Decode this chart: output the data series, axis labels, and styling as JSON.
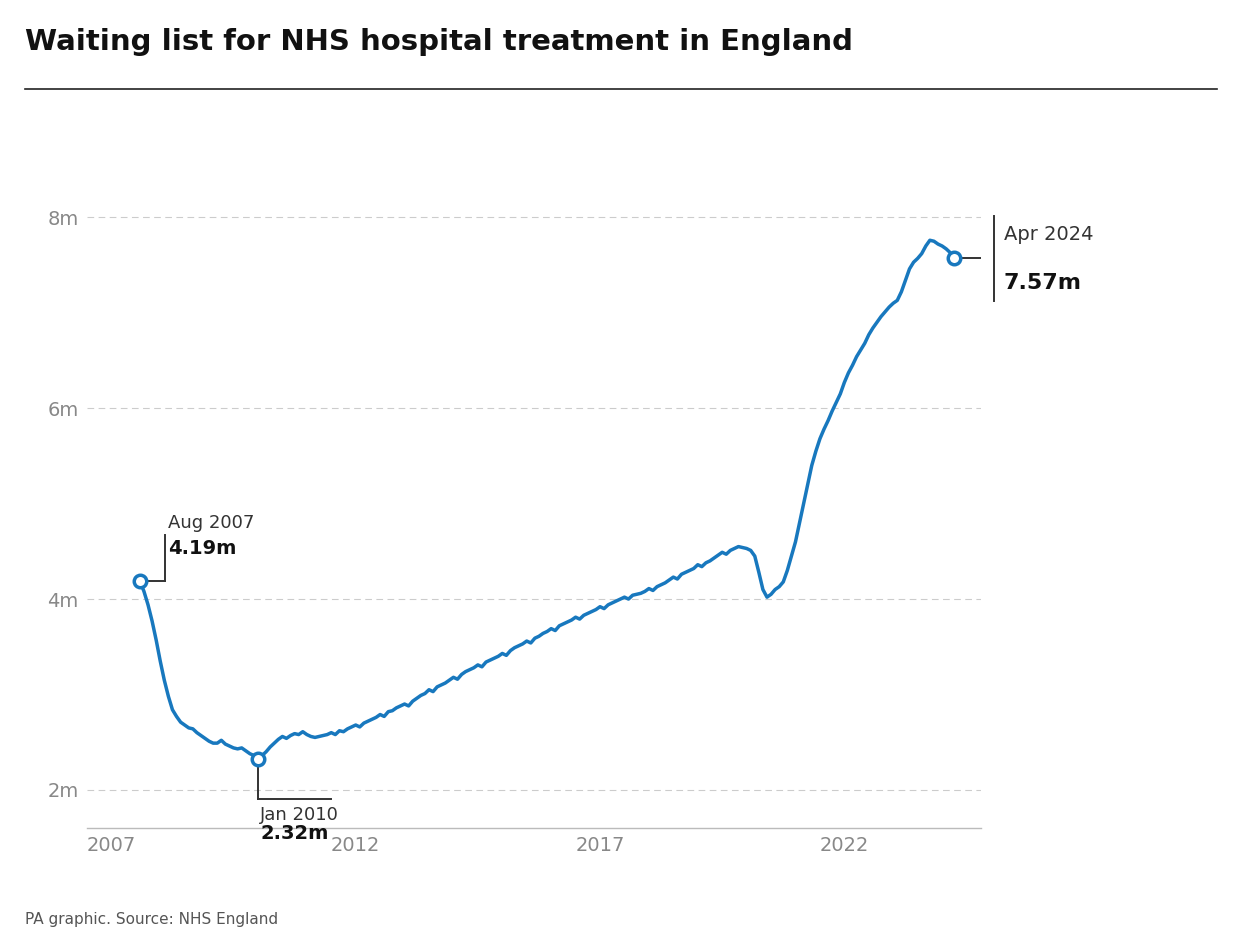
{
  "title": "Waiting list for NHS hospital treatment in England",
  "line_color": "#1878be",
  "background_color": "#ffffff",
  "grid_color": "#aaaaaa",
  "source_text": "PA graphic. Source: NHS England",
  "ytick_labels": [
    "2m",
    "4m",
    "6m",
    "8m"
  ],
  "ytick_values": [
    2000000,
    4000000,
    6000000,
    8000000
  ],
  "xtick_labels": [
    "2007",
    "2012",
    "2017",
    "2022"
  ],
  "xtick_values": [
    2007,
    2012,
    2017,
    2022
  ],
  "xlim": [
    2006.5,
    2024.8
  ],
  "ylim": [
    1600000,
    8700000
  ],
  "data": [
    [
      2007.583,
      4190000
    ],
    [
      2007.667,
      4080000
    ],
    [
      2007.75,
      3940000
    ],
    [
      2007.833,
      3770000
    ],
    [
      2007.917,
      3570000
    ],
    [
      2008.0,
      3350000
    ],
    [
      2008.083,
      3150000
    ],
    [
      2008.167,
      2980000
    ],
    [
      2008.25,
      2840000
    ],
    [
      2008.333,
      2770000
    ],
    [
      2008.417,
      2710000
    ],
    [
      2008.5,
      2680000
    ],
    [
      2008.583,
      2650000
    ],
    [
      2008.667,
      2640000
    ],
    [
      2008.75,
      2600000
    ],
    [
      2008.833,
      2570000
    ],
    [
      2008.917,
      2540000
    ],
    [
      2009.0,
      2510000
    ],
    [
      2009.083,
      2490000
    ],
    [
      2009.167,
      2490000
    ],
    [
      2009.25,
      2520000
    ],
    [
      2009.333,
      2480000
    ],
    [
      2009.417,
      2460000
    ],
    [
      2009.5,
      2440000
    ],
    [
      2009.583,
      2430000
    ],
    [
      2009.667,
      2440000
    ],
    [
      2009.75,
      2410000
    ],
    [
      2009.833,
      2380000
    ],
    [
      2009.917,
      2360000
    ],
    [
      2010.0,
      2320000
    ],
    [
      2010.083,
      2360000
    ],
    [
      2010.167,
      2400000
    ],
    [
      2010.25,
      2450000
    ],
    [
      2010.333,
      2490000
    ],
    [
      2010.417,
      2530000
    ],
    [
      2010.5,
      2560000
    ],
    [
      2010.583,
      2540000
    ],
    [
      2010.667,
      2570000
    ],
    [
      2010.75,
      2590000
    ],
    [
      2010.833,
      2580000
    ],
    [
      2010.917,
      2610000
    ],
    [
      2011.0,
      2580000
    ],
    [
      2011.083,
      2560000
    ],
    [
      2011.167,
      2550000
    ],
    [
      2011.25,
      2560000
    ],
    [
      2011.333,
      2570000
    ],
    [
      2011.417,
      2580000
    ],
    [
      2011.5,
      2600000
    ],
    [
      2011.583,
      2580000
    ],
    [
      2011.667,
      2620000
    ],
    [
      2011.75,
      2610000
    ],
    [
      2011.833,
      2640000
    ],
    [
      2011.917,
      2660000
    ],
    [
      2012.0,
      2680000
    ],
    [
      2012.083,
      2660000
    ],
    [
      2012.167,
      2700000
    ],
    [
      2012.25,
      2720000
    ],
    [
      2012.333,
      2740000
    ],
    [
      2012.417,
      2760000
    ],
    [
      2012.5,
      2790000
    ],
    [
      2012.583,
      2770000
    ],
    [
      2012.667,
      2820000
    ],
    [
      2012.75,
      2830000
    ],
    [
      2012.833,
      2860000
    ],
    [
      2012.917,
      2880000
    ],
    [
      2013.0,
      2900000
    ],
    [
      2013.083,
      2880000
    ],
    [
      2013.167,
      2930000
    ],
    [
      2013.25,
      2960000
    ],
    [
      2013.333,
      2990000
    ],
    [
      2013.417,
      3010000
    ],
    [
      2013.5,
      3050000
    ],
    [
      2013.583,
      3030000
    ],
    [
      2013.667,
      3080000
    ],
    [
      2013.75,
      3100000
    ],
    [
      2013.833,
      3120000
    ],
    [
      2013.917,
      3150000
    ],
    [
      2014.0,
      3180000
    ],
    [
      2014.083,
      3160000
    ],
    [
      2014.167,
      3210000
    ],
    [
      2014.25,
      3240000
    ],
    [
      2014.333,
      3260000
    ],
    [
      2014.417,
      3280000
    ],
    [
      2014.5,
      3310000
    ],
    [
      2014.583,
      3290000
    ],
    [
      2014.667,
      3340000
    ],
    [
      2014.75,
      3360000
    ],
    [
      2014.833,
      3380000
    ],
    [
      2014.917,
      3400000
    ],
    [
      2015.0,
      3430000
    ],
    [
      2015.083,
      3410000
    ],
    [
      2015.167,
      3460000
    ],
    [
      2015.25,
      3490000
    ],
    [
      2015.333,
      3510000
    ],
    [
      2015.417,
      3530000
    ],
    [
      2015.5,
      3560000
    ],
    [
      2015.583,
      3540000
    ],
    [
      2015.667,
      3590000
    ],
    [
      2015.75,
      3610000
    ],
    [
      2015.833,
      3640000
    ],
    [
      2015.917,
      3660000
    ],
    [
      2016.0,
      3690000
    ],
    [
      2016.083,
      3670000
    ],
    [
      2016.167,
      3720000
    ],
    [
      2016.25,
      3740000
    ],
    [
      2016.333,
      3760000
    ],
    [
      2016.417,
      3780000
    ],
    [
      2016.5,
      3810000
    ],
    [
      2016.583,
      3790000
    ],
    [
      2016.667,
      3830000
    ],
    [
      2016.75,
      3850000
    ],
    [
      2016.833,
      3870000
    ],
    [
      2016.917,
      3890000
    ],
    [
      2017.0,
      3920000
    ],
    [
      2017.083,
      3900000
    ],
    [
      2017.167,
      3940000
    ],
    [
      2017.25,
      3960000
    ],
    [
      2017.333,
      3980000
    ],
    [
      2017.417,
      4000000
    ],
    [
      2017.5,
      4020000
    ],
    [
      2017.583,
      4000000
    ],
    [
      2017.667,
      4040000
    ],
    [
      2017.75,
      4050000
    ],
    [
      2017.833,
      4060000
    ],
    [
      2017.917,
      4080000
    ],
    [
      2018.0,
      4110000
    ],
    [
      2018.083,
      4090000
    ],
    [
      2018.167,
      4130000
    ],
    [
      2018.25,
      4150000
    ],
    [
      2018.333,
      4170000
    ],
    [
      2018.417,
      4200000
    ],
    [
      2018.5,
      4230000
    ],
    [
      2018.583,
      4210000
    ],
    [
      2018.667,
      4260000
    ],
    [
      2018.75,
      4280000
    ],
    [
      2018.833,
      4300000
    ],
    [
      2018.917,
      4320000
    ],
    [
      2019.0,
      4360000
    ],
    [
      2019.083,
      4340000
    ],
    [
      2019.167,
      4380000
    ],
    [
      2019.25,
      4400000
    ],
    [
      2019.333,
      4430000
    ],
    [
      2019.417,
      4460000
    ],
    [
      2019.5,
      4490000
    ],
    [
      2019.583,
      4470000
    ],
    [
      2019.667,
      4510000
    ],
    [
      2019.75,
      4530000
    ],
    [
      2019.833,
      4550000
    ],
    [
      2019.917,
      4540000
    ],
    [
      2020.0,
      4530000
    ],
    [
      2020.083,
      4510000
    ],
    [
      2020.167,
      4450000
    ],
    [
      2020.25,
      4280000
    ],
    [
      2020.333,
      4100000
    ],
    [
      2020.417,
      4020000
    ],
    [
      2020.5,
      4050000
    ],
    [
      2020.583,
      4100000
    ],
    [
      2020.667,
      4130000
    ],
    [
      2020.75,
      4180000
    ],
    [
      2020.833,
      4300000
    ],
    [
      2020.917,
      4450000
    ],
    [
      2021.0,
      4600000
    ],
    [
      2021.083,
      4800000
    ],
    [
      2021.167,
      5000000
    ],
    [
      2021.25,
      5200000
    ],
    [
      2021.333,
      5400000
    ],
    [
      2021.417,
      5550000
    ],
    [
      2021.5,
      5680000
    ],
    [
      2021.583,
      5780000
    ],
    [
      2021.667,
      5870000
    ],
    [
      2021.75,
      5970000
    ],
    [
      2021.833,
      6060000
    ],
    [
      2021.917,
      6150000
    ],
    [
      2022.0,
      6270000
    ],
    [
      2022.083,
      6370000
    ],
    [
      2022.167,
      6450000
    ],
    [
      2022.25,
      6540000
    ],
    [
      2022.333,
      6610000
    ],
    [
      2022.417,
      6680000
    ],
    [
      2022.5,
      6770000
    ],
    [
      2022.583,
      6840000
    ],
    [
      2022.667,
      6900000
    ],
    [
      2022.75,
      6960000
    ],
    [
      2022.833,
      7010000
    ],
    [
      2022.917,
      7060000
    ],
    [
      2023.0,
      7100000
    ],
    [
      2023.083,
      7130000
    ],
    [
      2023.167,
      7220000
    ],
    [
      2023.25,
      7340000
    ],
    [
      2023.333,
      7460000
    ],
    [
      2023.417,
      7530000
    ],
    [
      2023.5,
      7570000
    ],
    [
      2023.583,
      7620000
    ],
    [
      2023.667,
      7700000
    ],
    [
      2023.75,
      7760000
    ],
    [
      2023.833,
      7750000
    ],
    [
      2023.917,
      7720000
    ],
    [
      2024.0,
      7700000
    ],
    [
      2024.083,
      7670000
    ],
    [
      2024.167,
      7630000
    ],
    [
      2024.25,
      7570000
    ]
  ]
}
